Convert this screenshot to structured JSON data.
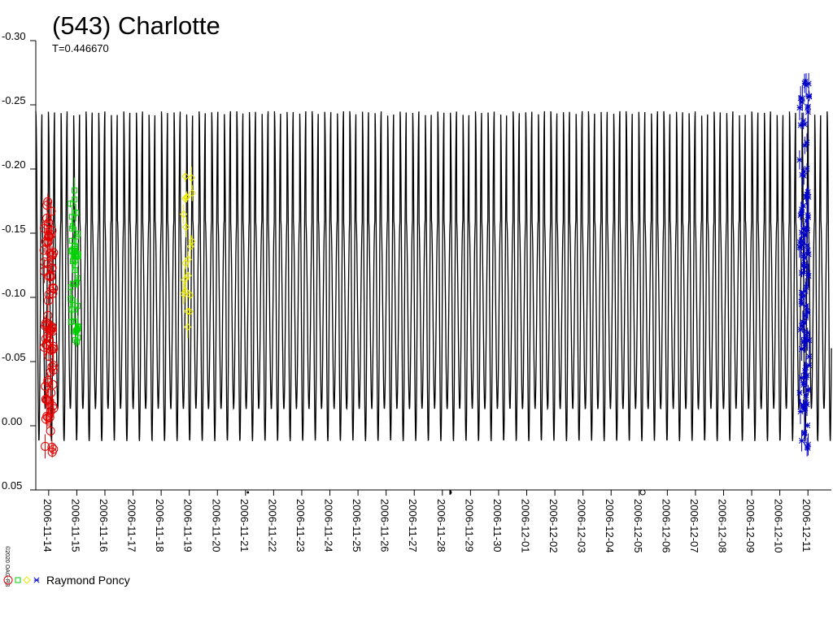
{
  "chart_data": {
    "type": "line",
    "title": "(543) Charlotte",
    "subtitle": "T=0.446670",
    "period_days": 0.44667,
    "y_inverted": true,
    "ylim": [
      0.05,
      -0.3
    ],
    "y_ticks": [
      -0.3,
      -0.25,
      -0.2,
      -0.15,
      -0.1,
      -0.05,
      0.0,
      0.05
    ],
    "y_tick_labels": [
      "-0.30",
      "-0.25",
      "-0.20",
      "-0.15",
      "-0.10",
      "-0.05",
      "0.00",
      "0.05"
    ],
    "x_range": [
      "2006-11-13T13:00",
      "2006-12-11T20:00"
    ],
    "x_tick_labels": [
      "2006-11-14",
      "2006-11-15",
      "2006-11-16",
      "2006-11-17",
      "2006-11-18",
      "2006-11-19",
      "2006-11-20",
      "2006-11-21",
      "2006-11-22",
      "2006-11-23",
      "2006-11-24",
      "2006-11-25",
      "2006-11-26",
      "2006-11-27",
      "2006-11-28",
      "2006-11-29",
      "2006-11-30",
      "2006-12-01",
      "2006-12-02",
      "2006-12-03",
      "2006-12-04",
      "2006-12-05",
      "2006-12-06",
      "2006-12-07",
      "2006-12-08",
      "2006-12-09",
      "2006-12-10",
      "2006-12-11"
    ],
    "model_curve": {
      "primary_max": -0.245,
      "primary_min": 0.012,
      "secondary_max": -0.16,
      "secondary_min": -0.013,
      "color": "#000000"
    },
    "moon_markers": [
      {
        "date": "2006-11-21T02:00",
        "symbol": "full-moon"
      },
      {
        "date": "2006-11-28T06:00",
        "symbol": "first-quarter"
      },
      {
        "date": "2006-12-05T03:00",
        "symbol": "new-moon"
      }
    ],
    "series": [
      {
        "color": "#e00000",
        "marker": "circle",
        "x_center": "2006-11-14T00:00",
        "y_range": [
          0.025,
          -0.175
        ],
        "count": 80
      },
      {
        "color": "#00d000",
        "marker": "square",
        "x_center": "2006-11-14T22:00",
        "y_range": [
          -0.065,
          -0.185
        ],
        "count": 45
      },
      {
        "color": "#e8e800",
        "marker": "diamond",
        "x_center": "2006-11-18T23:00",
        "y_range": [
          -0.07,
          -0.2
        ],
        "count": 20
      },
      {
        "color": "#0000c8",
        "marker": "star",
        "x_center": "2006-12-10T21:00",
        "y_range": [
          0.02,
          -0.27
        ],
        "count": 110
      }
    ]
  },
  "copyright": "©2020 OAG-RB",
  "legend": {
    "observer": "Raymond Poncy",
    "symbol_colors": [
      "#e00000",
      "#00d000",
      "#e8e800",
      "#0000c8"
    ]
  }
}
